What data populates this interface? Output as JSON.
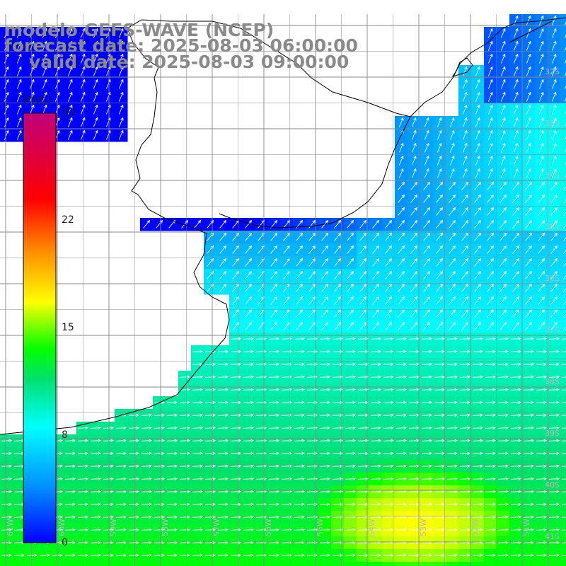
{
  "title": {
    "line1": "modelo GEFS-WAVE (NCEP)",
    "line2": "forecast date: 2025-08-03 06:00:00",
    "line3": "valid date: 2025-08-03 09:00:00"
  },
  "colorbar": {
    "unit": "[m/s]",
    "ticks": [
      "30",
      "22",
      "15",
      "8",
      "0"
    ],
    "tick_values": [
      30,
      22,
      15,
      8,
      0
    ],
    "min": 0,
    "max": 30,
    "colors": [
      "#0000ff",
      "#00a0ff",
      "#00ffff",
      "#00e060",
      "#00ff00",
      "#c0ff00",
      "#ffff00",
      "#ff8000",
      "#ff0000",
      "#c0007c"
    ]
  },
  "map": {
    "lon_labels": [
      "61W",
      "60W",
      "59W",
      "58W",
      "57W",
      "56W",
      "55W",
      "54W",
      "53W",
      "52W",
      "51W"
    ],
    "lat_labels": [
      "32S",
      "33S",
      "34S",
      "35S",
      "36S",
      "37S",
      "38S",
      "39S",
      "40S",
      "41S"
    ],
    "land_color": "#ffffff",
    "grid_color": "#888888",
    "arrow_color": "#ffffff"
  }
}
